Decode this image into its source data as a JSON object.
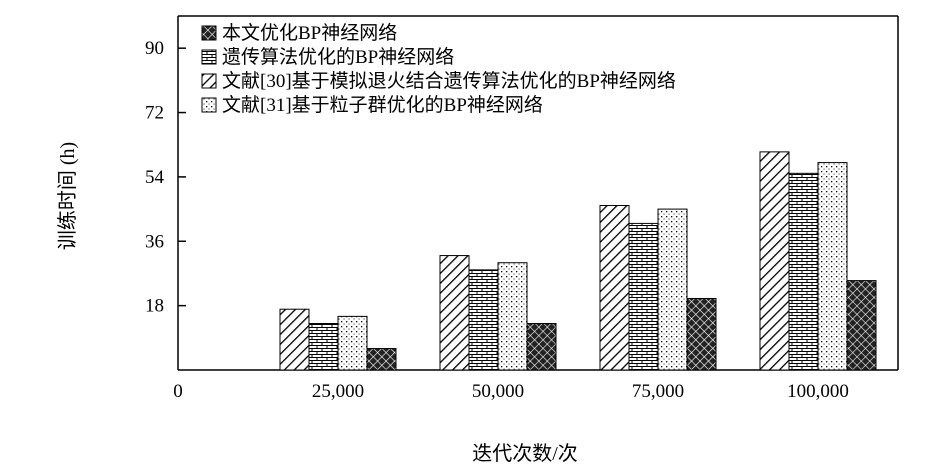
{
  "chart_data": {
    "type": "bar",
    "xlabel": "迭代次数/次",
    "ylabel": "训练时间 (h)",
    "categories": [
      "25,000",
      "50,000",
      "75,000",
      "100,000"
    ],
    "x_zero_label": "0",
    "ylim": [
      0,
      99
    ],
    "yticks": [
      "18",
      "36",
      "54",
      "72",
      "90"
    ],
    "legend_position": "top-left",
    "series": [
      {
        "name": "文献[30]基于模拟退火结合遗传算法优化的BP神经网络",
        "pattern": "diagonal-hatch",
        "values": [
          17,
          32,
          46,
          61
        ]
      },
      {
        "name": "遗传算法优化的BP神经网络",
        "pattern": "brick",
        "values": [
          13,
          28,
          41,
          55
        ]
      },
      {
        "name": "文献[31]基于粒子群优化的BP神经网络",
        "pattern": "dotted",
        "values": [
          15,
          30,
          45,
          58
        ]
      },
      {
        "name": "本文优化BP神经网络",
        "pattern": "crosshatch-dark",
        "values": [
          6,
          13,
          20,
          25
        ]
      }
    ],
    "legend_order": [
      3,
      1,
      0,
      2
    ]
  }
}
